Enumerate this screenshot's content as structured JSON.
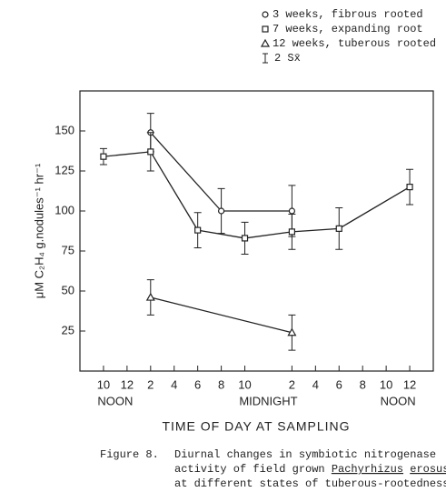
{
  "chart_data": {
    "type": "line",
    "y_label": "μM C₂H₄ g.nodules⁻¹ hr⁻¹",
    "x_label": "TIME OF DAY AT SAMPLING",
    "xlim": [
      8,
      38
    ],
    "ylim": [
      0,
      175
    ],
    "xticks": [
      10,
      12,
      {
        "value": 14,
        "label": "2"
      },
      {
        "value": 16,
        "label": "4"
      },
      {
        "value": 18,
        "label": "6"
      },
      {
        "value": 20,
        "label": "8"
      },
      {
        "value": 22,
        "label": "10"
      },
      {
        "value": 26,
        "label": "2"
      },
      {
        "value": 28,
        "label": "4"
      },
      {
        "value": 30,
        "label": "6"
      },
      {
        "value": 32,
        "label": "8"
      },
      {
        "value": 34,
        "label": "10"
      },
      {
        "value": 36,
        "label": "12"
      }
    ],
    "yticks": [
      25,
      50,
      75,
      100,
      125,
      150
    ],
    "x_annotations": [
      {
        "x": 11,
        "label": "NOON"
      },
      {
        "x": 24,
        "label": "MIDNIGHT"
      },
      {
        "x": 35,
        "label": "NOON"
      }
    ],
    "error_legend": "2 Sx̄",
    "series": [
      {
        "name": "3 weeks, fibrous rooted",
        "marker": "circle",
        "color": "#222",
        "x": [
          14,
          20,
          26
        ],
        "values": [
          149,
          100,
          100
        ],
        "errors": [
          12,
          14,
          16
        ]
      },
      {
        "name": "7 weeks, expanding root",
        "marker": "square",
        "color": "#222",
        "x": [
          10,
          14,
          18,
          22,
          26,
          30,
          36
        ],
        "values": [
          134,
          137,
          88,
          83,
          87,
          89,
          115
        ],
        "errors": [
          5,
          12,
          11,
          10,
          11,
          13,
          11
        ]
      },
      {
        "name": "12 weeks, tuberous rooted",
        "marker": "triangle",
        "color": "#222",
        "x": [
          14,
          26
        ],
        "values": [
          46,
          24
        ],
        "errors": [
          11,
          11
        ]
      }
    ],
    "caption": {
      "label": "Figure 8.",
      "lines": [
        [
          {
            "text": "Diurnal changes in symbiotic nitrogenase"
          }
        ],
        [
          {
            "text": "activity of field grown "
          },
          {
            "text": "Pachyrhizus",
            "underline": true
          },
          {
            "text": " "
          },
          {
            "text": "erosus",
            "underline": true
          }
        ],
        [
          {
            "text": "at different states of tuberous-rootedness"
          }
        ]
      ]
    }
  }
}
